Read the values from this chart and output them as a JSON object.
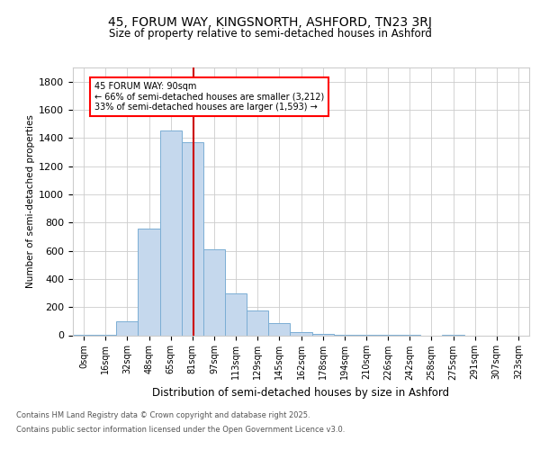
{
  "title_line1": "45, FORUM WAY, KINGSNORTH, ASHFORD, TN23 3RJ",
  "title_line2": "Size of property relative to semi-detached houses in Ashford",
  "xlabel": "Distribution of semi-detached houses by size in Ashford",
  "ylabel": "Number of semi-detached properties",
  "categories": [
    "0sqm",
    "16sqm",
    "32sqm",
    "48sqm",
    "65sqm",
    "81sqm",
    "97sqm",
    "113sqm",
    "129sqm",
    "145sqm",
    "162sqm",
    "178sqm",
    "194sqm",
    "210sqm",
    "226sqm",
    "242sqm",
    "258sqm",
    "275sqm",
    "291sqm",
    "307sqm",
    "323sqm"
  ],
  "values": [
    5,
    5,
    100,
    760,
    1450,
    1370,
    610,
    295,
    175,
    85,
    20,
    10,
    5,
    2,
    1,
    1,
    0,
    5,
    0,
    0,
    0
  ],
  "bar_color": "#c5d8ed",
  "bar_edgecolor": "#7baed4",
  "annotation_label": "45 FORUM WAY: 90sqm",
  "annotation_smaller": "← 66% of semi-detached houses are smaller (3,212)",
  "annotation_larger": "33% of semi-detached houses are larger (1,593) →",
  "vline_color": "#cc0000",
  "ylim": [
    0,
    1900
  ],
  "yticks": [
    0,
    200,
    400,
    600,
    800,
    1000,
    1200,
    1400,
    1600,
    1800
  ],
  "background_color": "#ffffff",
  "grid_color": "#cccccc",
  "footnote1": "Contains HM Land Registry data © Crown copyright and database right 2025.",
  "footnote2": "Contains public sector information licensed under the Open Government Licence v3.0."
}
